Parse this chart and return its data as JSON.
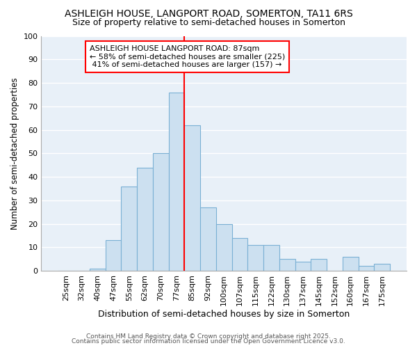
{
  "title": "ASHLEIGH HOUSE, LANGPORT ROAD, SOMERTON, TA11 6RS",
  "subtitle": "Size of property relative to semi-detached houses in Somerton",
  "bar_labels": [
    "25sqm",
    "32sqm",
    "40sqm",
    "47sqm",
    "55sqm",
    "62sqm",
    "70sqm",
    "77sqm",
    "85sqm",
    "92sqm",
    "100sqm",
    "107sqm",
    "115sqm",
    "122sqm",
    "130sqm",
    "137sqm",
    "145sqm",
    "152sqm",
    "160sqm",
    "167sqm",
    "175sqm"
  ],
  "bar_values": [
    0,
    0,
    1,
    13,
    36,
    44,
    50,
    76,
    62,
    27,
    20,
    14,
    11,
    11,
    5,
    4,
    5,
    0,
    6,
    2,
    3
  ],
  "bar_color": "#cce0f0",
  "bar_edge_color": "#7ab0d4",
  "marker_bin_index": 8,
  "marker_color": "red",
  "annotation_title": "ASHLEIGH HOUSE LANGPORT ROAD: 87sqm",
  "annotation_line1": "← 58% of semi-detached houses are smaller (225)",
  "annotation_line2": " 41% of semi-detached houses are larger (157) →",
  "xlabel": "Distribution of semi-detached houses by size in Somerton",
  "ylabel": "Number of semi-detached properties",
  "ylim": [
    0,
    100
  ],
  "footer1": "Contains HM Land Registry data © Crown copyright and database right 2025.",
  "footer2": "Contains public sector information licensed under the Open Government Licence v3.0.",
  "fig_bg_color": "#ffffff",
  "plot_bg_color": "#e8f0f8",
  "grid_color": "#ffffff",
  "title_fontsize": 10,
  "subtitle_fontsize": 9,
  "tick_fontsize": 8,
  "ylabel_fontsize": 8.5,
  "xlabel_fontsize": 9
}
